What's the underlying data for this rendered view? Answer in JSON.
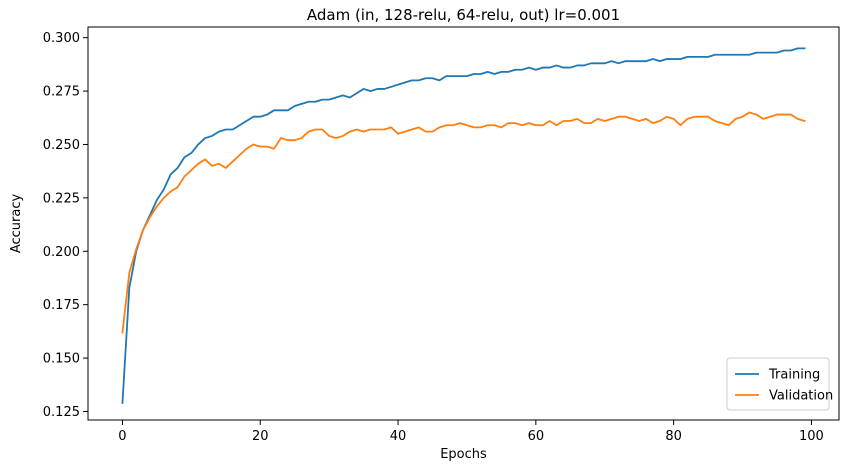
{
  "chart_data": {
    "type": "line",
    "title": "Adam (in, 128-relu, 64-relu, out) lr=0.001",
    "xlabel": "Epochs",
    "ylabel": "Accuracy",
    "xlim": [
      -5,
      104
    ],
    "ylim": [
      0.121,
      0.305
    ],
    "xticks": [
      0,
      20,
      40,
      60,
      80,
      100
    ],
    "yticks": [
      0.125,
      0.15,
      0.175,
      0.2,
      0.225,
      0.25,
      0.275,
      0.3
    ],
    "grid": false,
    "legend_position": "lower-right",
    "series": [
      {
        "name": "Training",
        "color": "#1f77b4",
        "values": [
          0.129,
          0.183,
          0.2,
          0.21,
          0.217,
          0.224,
          0.229,
          0.236,
          0.239,
          0.244,
          0.246,
          0.25,
          0.253,
          0.254,
          0.256,
          0.257,
          0.257,
          0.259,
          0.261,
          0.263,
          0.263,
          0.264,
          0.266,
          0.266,
          0.266,
          0.268,
          0.269,
          0.27,
          0.27,
          0.271,
          0.271,
          0.272,
          0.273,
          0.272,
          0.274,
          0.276,
          0.275,
          0.276,
          0.276,
          0.277,
          0.278,
          0.279,
          0.28,
          0.28,
          0.281,
          0.281,
          0.28,
          0.282,
          0.282,
          0.282,
          0.282,
          0.283,
          0.283,
          0.284,
          0.283,
          0.284,
          0.284,
          0.285,
          0.285,
          0.286,
          0.285,
          0.286,
          0.286,
          0.287,
          0.286,
          0.286,
          0.287,
          0.287,
          0.288,
          0.288,
          0.288,
          0.289,
          0.288,
          0.289,
          0.289,
          0.289,
          0.289,
          0.29,
          0.289,
          0.29,
          0.29,
          0.29,
          0.291,
          0.291,
          0.291,
          0.291,
          0.292,
          0.292,
          0.292,
          0.292,
          0.292,
          0.292,
          0.293,
          0.293,
          0.293,
          0.293,
          0.294,
          0.294,
          0.295,
          0.295
        ]
      },
      {
        "name": "Validation",
        "color": "#ff7f0e",
        "values": [
          0.162,
          0.19,
          0.201,
          0.21,
          0.216,
          0.221,
          0.225,
          0.228,
          0.23,
          0.235,
          0.238,
          0.241,
          0.243,
          0.24,
          0.241,
          0.239,
          0.242,
          0.245,
          0.248,
          0.25,
          0.249,
          0.249,
          0.248,
          0.253,
          0.252,
          0.252,
          0.253,
          0.256,
          0.257,
          0.257,
          0.254,
          0.253,
          0.254,
          0.256,
          0.257,
          0.256,
          0.257,
          0.257,
          0.257,
          0.258,
          0.255,
          0.256,
          0.257,
          0.258,
          0.256,
          0.256,
          0.258,
          0.259,
          0.259,
          0.26,
          0.259,
          0.258,
          0.258,
          0.259,
          0.259,
          0.258,
          0.26,
          0.26,
          0.259,
          0.26,
          0.259,
          0.259,
          0.261,
          0.259,
          0.261,
          0.261,
          0.262,
          0.26,
          0.26,
          0.262,
          0.261,
          0.262,
          0.263,
          0.263,
          0.262,
          0.261,
          0.262,
          0.26,
          0.261,
          0.263,
          0.262,
          0.259,
          0.262,
          0.263,
          0.263,
          0.263,
          0.261,
          0.26,
          0.259,
          0.262,
          0.263,
          0.265,
          0.264,
          0.262,
          0.263,
          0.264,
          0.264,
          0.264,
          0.262,
          0.261
        ]
      }
    ]
  }
}
